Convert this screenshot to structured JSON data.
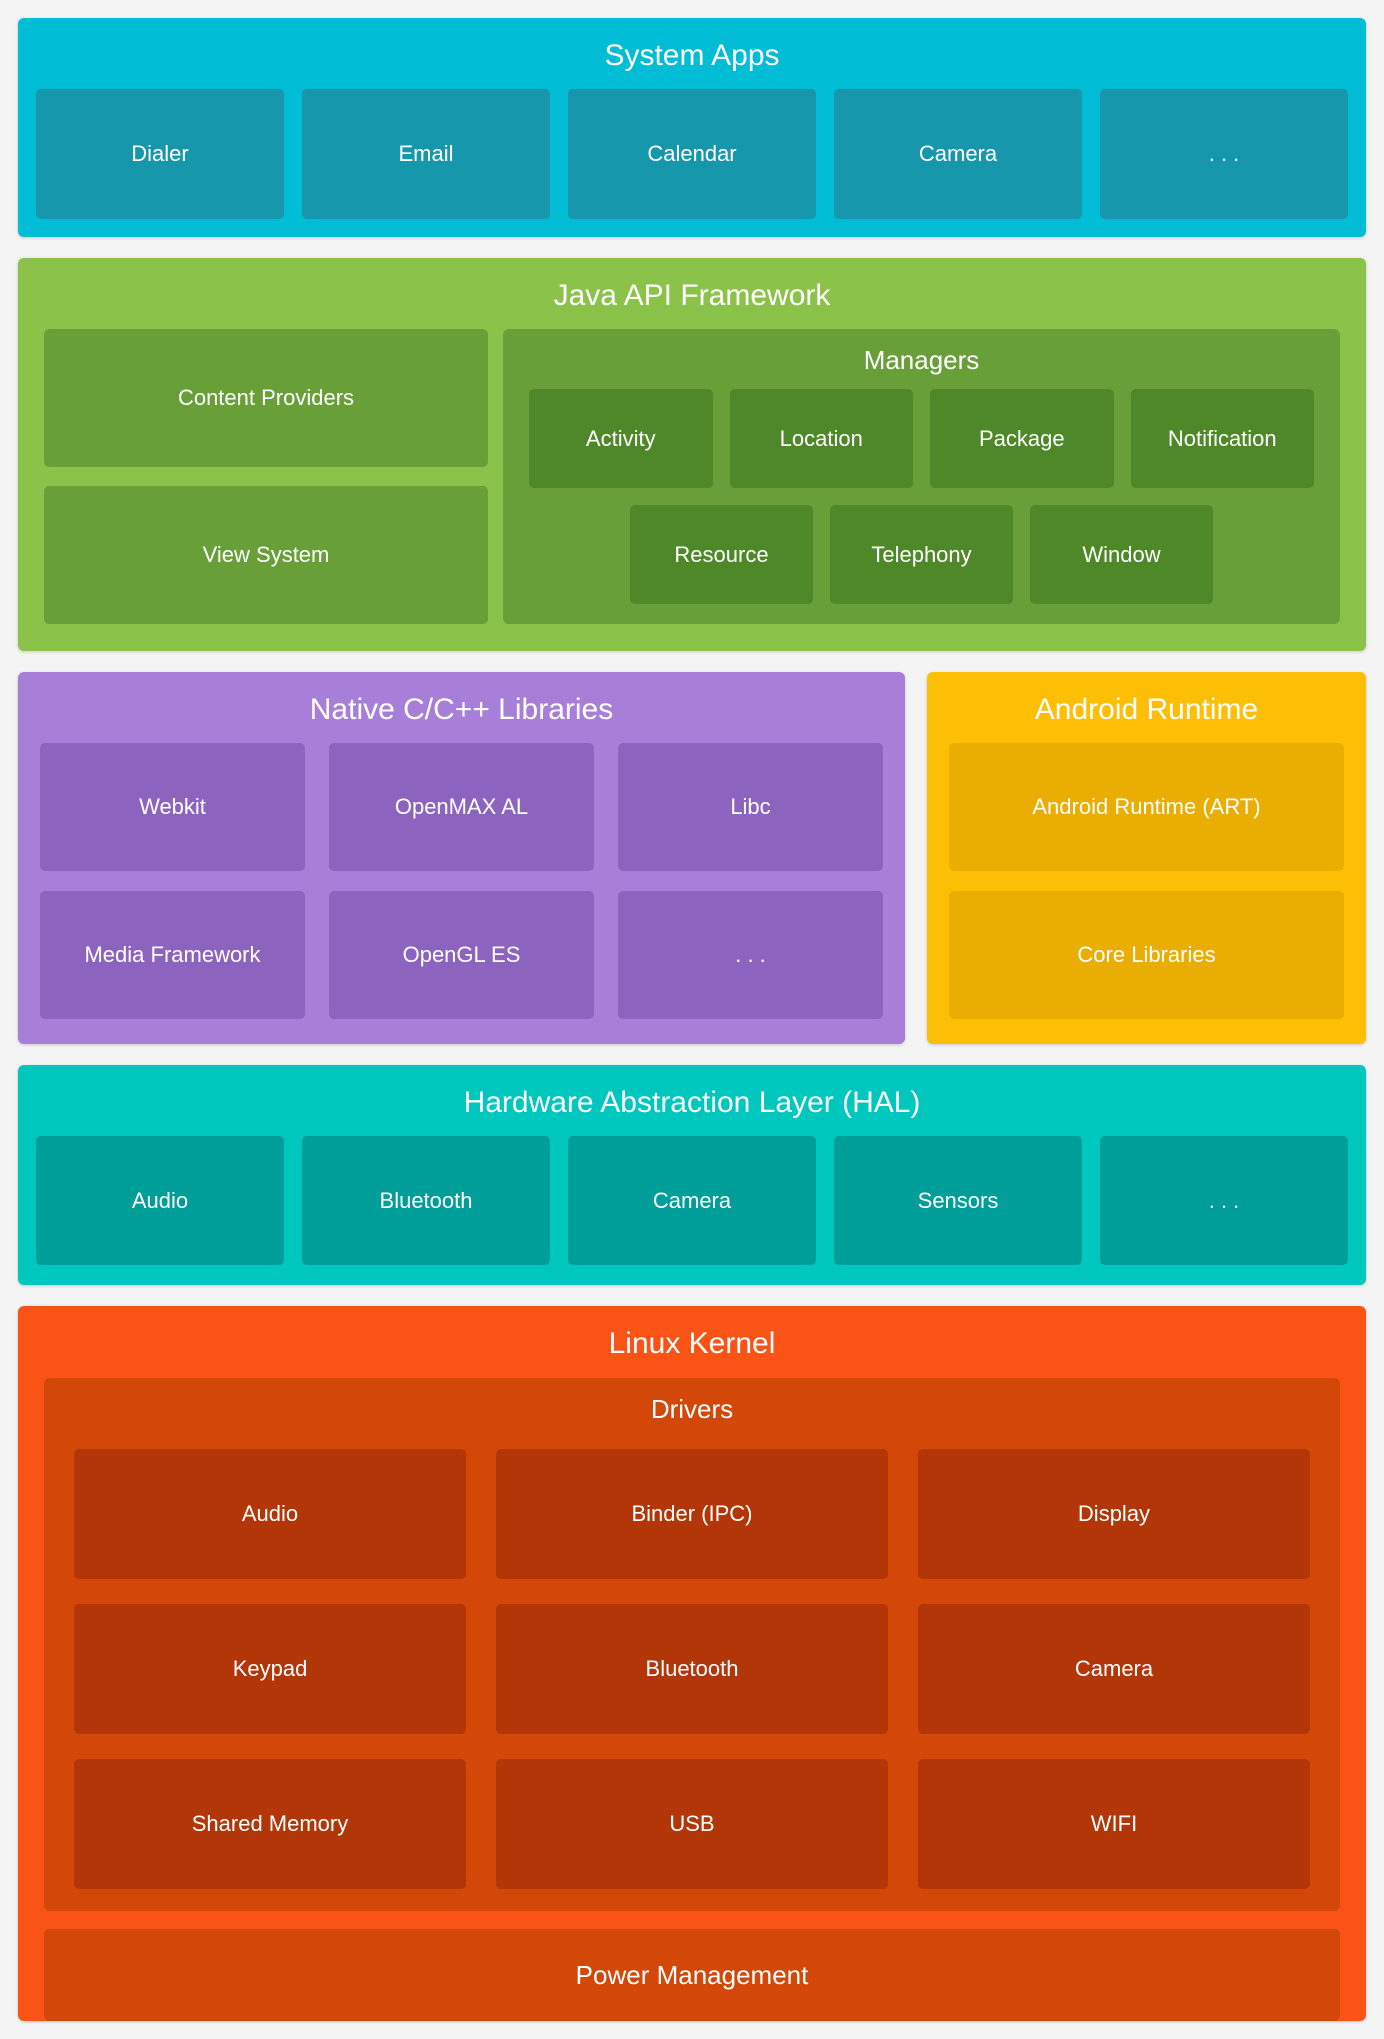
{
  "colors": {
    "system_apps_bg": "#00BCD4",
    "system_apps_box": "#1797AB",
    "java_bg": "#8BC34A",
    "java_box": "#689F38",
    "java_inner_box": "#4E8828",
    "native_bg": "#A87FD8",
    "native_box": "#8C63BF",
    "runtime_bg": "#FDBE06",
    "runtime_box": "#EAAE03",
    "hal_bg": "#00C7BE",
    "hal_box": "#009E98",
    "kernel_bg": "#F95316",
    "kernel_mid": "#D34708",
    "kernel_box": "#B23607"
  },
  "sections": {
    "system_apps": {
      "title": "System Apps",
      "boxes": [
        "Dialer",
        "Email",
        "Calendar",
        "Camera",
        ". . ."
      ]
    },
    "java": {
      "title": "Java API Framework",
      "left_boxes": [
        "Content Providers",
        "View System"
      ],
      "managers": {
        "title": "Managers",
        "row1": [
          "Activity",
          "Location",
          "Package",
          "Notification"
        ],
        "row2": [
          "Resource",
          "Telephony",
          "Window"
        ]
      }
    },
    "native": {
      "title": "Native C/C++ Libraries",
      "row1": [
        "Webkit",
        "OpenMAX AL",
        "Libc"
      ],
      "row2": [
        "Media Framework",
        "OpenGL ES",
        ". . ."
      ]
    },
    "runtime": {
      "title": "Android Runtime",
      "boxes": [
        "Android Runtime (ART)",
        "Core Libraries"
      ]
    },
    "hal": {
      "title": "Hardware Abstraction Layer (HAL)",
      "boxes": [
        "Audio",
        "Bluetooth",
        "Camera",
        "Sensors",
        ". . ."
      ]
    },
    "kernel": {
      "title": "Linux Kernel",
      "drivers": {
        "title": "Drivers",
        "row1": [
          "Audio",
          "Binder (IPC)",
          "Display"
        ],
        "row2": [
          "Keypad",
          "Bluetooth",
          "Camera"
        ],
        "row3": [
          "Shared Memory",
          "USB",
          "WIFI"
        ]
      },
      "power": "Power Management"
    }
  }
}
